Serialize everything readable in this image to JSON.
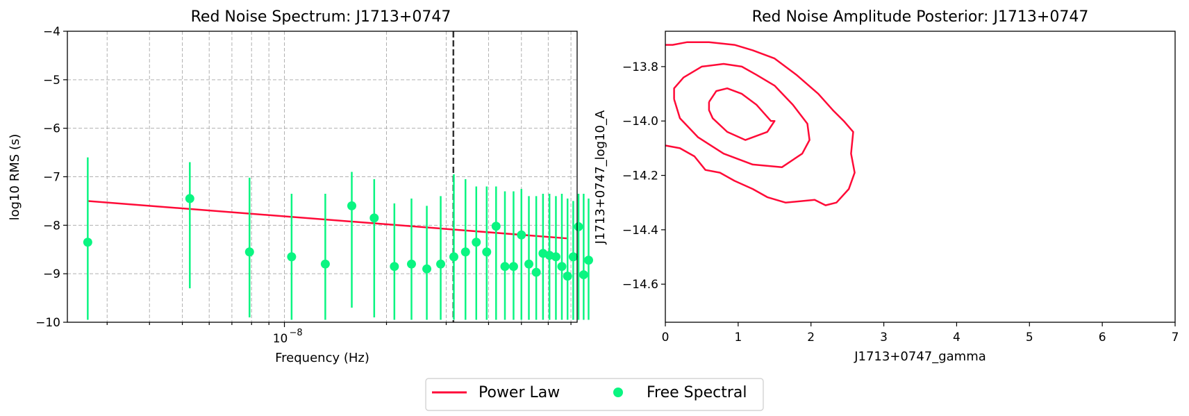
{
  "colors": {
    "power_law": "#ff0a37",
    "free_spectral": "#0af581",
    "contour": "#ff0a37",
    "grid": "#b0b0b0",
    "vline": "#333333"
  },
  "legend": {
    "items": [
      {
        "label": "Power Law",
        "marker": "line",
        "color": "#ff0a37"
      },
      {
        "label": "Free Spectral",
        "marker": "dot",
        "color": "#0af581"
      }
    ]
  },
  "chart_data": [
    {
      "type": "scatter",
      "title": "Red Noise Spectrum: J1713+0747",
      "xlabel": "Frequency (Hz)",
      "ylabel": "log10 RMS (s)",
      "xscale": "log",
      "xlim": [
        2.29e-09,
        7.3e-08
      ],
      "ylim": [
        -10,
        -4
      ],
      "yticks": [
        -10,
        -9,
        -8,
        -7,
        -6,
        -5,
        -4
      ],
      "ytick_labels": [
        "−10",
        "−9",
        "−8",
        "−7",
        "−6",
        "−5",
        "−4"
      ],
      "xtick_major_labels": [
        {
          "value": 1e-08,
          "label": "10",
          "exp": "−8"
        }
      ],
      "grid": true,
      "vline_x": 3.15e-08,
      "power_law": {
        "name": "Power Law",
        "x": [
          2.63e-09,
          6.8e-08
        ],
        "y": [
          -7.5,
          -8.27
        ]
      },
      "free_spectral": {
        "name": "Free Spectral",
        "x": [
          2.63e-09,
          5.26e-09,
          7.89e-09,
          1.05e-08,
          1.32e-08,
          1.58e-08,
          1.84e-08,
          2.11e-08,
          2.37e-08,
          2.63e-08,
          2.89e-08,
          3.16e-08,
          3.42e-08,
          3.68e-08,
          3.95e-08,
          4.21e-08,
          4.47e-08,
          4.74e-08,
          5e-08,
          5.26e-08,
          5.53e-08,
          5.79e-08,
          6.05e-08,
          6.32e-08,
          6.58e-08,
          6.84e-08,
          7.11e-08,
          7.37e-08,
          7.63e-08,
          7.89e-08
        ],
        "y": [
          -8.35,
          -7.45,
          -8.55,
          -8.65,
          -8.8,
          -7.6,
          -7.85,
          -8.85,
          -8.8,
          -8.9,
          -8.8,
          -8.65,
          -8.55,
          -8.35,
          -8.55,
          -8.02,
          -8.85,
          -8.85,
          -8.2,
          -8.8,
          -8.97,
          -8.58,
          -8.62,
          -8.65,
          -8.85,
          -9.05,
          -8.65,
          -8.03,
          -9.02,
          -8.72
        ],
        "err_low": [
          -9.95,
          -9.3,
          -9.9,
          -9.95,
          -9.95,
          -9.7,
          -9.9,
          -9.95,
          -9.95,
          -9.95,
          -9.95,
          -9.95,
          -9.95,
          -9.95,
          -9.95,
          -9.95,
          -9.95,
          -9.95,
          -9.95,
          -9.95,
          -9.95,
          -9.95,
          -9.95,
          -9.95,
          -9.95,
          -9.95,
          -9.95,
          -9.95,
          -9.95,
          -9.95
        ],
        "err_high": [
          -6.6,
          -6.7,
          -7.02,
          -7.35,
          -7.35,
          -6.9,
          -7.05,
          -7.55,
          -7.45,
          -7.6,
          -7.4,
          -6.95,
          -7.05,
          -7.2,
          -7.2,
          -7.2,
          -7.3,
          -7.3,
          -7.25,
          -7.4,
          -7.4,
          -7.35,
          -7.35,
          -7.4,
          -7.35,
          -7.45,
          -7.5,
          -7.35,
          -7.35,
          -7.45
        ]
      }
    },
    {
      "type": "contour",
      "title": "Red Noise Amplitude Posterior: J1713+0747",
      "xlabel": "J1713+0747_gamma",
      "ylabel": "J1713+0747_log10_A",
      "xlim": [
        0,
        7
      ],
      "ylim": [
        -14.74,
        -13.67
      ],
      "xticks": [
        0,
        1,
        2,
        3,
        4,
        5,
        6,
        7
      ],
      "xtick_labels": [
        "0",
        "1",
        "2",
        "3",
        "4",
        "5",
        "6",
        "7"
      ],
      "yticks": [
        -14.6,
        -14.4,
        -14.2,
        -14.0,
        -13.8
      ],
      "ytick_labels": [
        "−14.6",
        "−14.4",
        "−14.2",
        "−14.0",
        "−13.8"
      ],
      "grid": false,
      "contours": [
        {
          "level": "inner",
          "points": [
            [
              0.6,
              -13.93
            ],
            [
              0.7,
              -13.89
            ],
            [
              0.85,
              -13.88
            ],
            [
              1.05,
              -13.9
            ],
            [
              1.25,
              -13.94
            ],
            [
              1.45,
              -14.0
            ],
            [
              1.5,
              -14.0
            ],
            [
              1.4,
              -14.04
            ],
            [
              1.1,
              -14.07
            ],
            [
              0.85,
              -14.04
            ],
            [
              0.65,
              -13.99
            ],
            [
              0.6,
              -13.96
            ],
            [
              0.6,
              -13.93
            ]
          ]
        },
        {
          "level": "middle",
          "points": [
            [
              0.12,
              -13.92
            ],
            [
              0.12,
              -13.88
            ],
            [
              0.25,
              -13.84
            ],
            [
              0.5,
              -13.8
            ],
            [
              0.8,
              -13.79
            ],
            [
              1.05,
              -13.8
            ],
            [
              1.25,
              -13.83
            ],
            [
              1.5,
              -13.87
            ],
            [
              1.75,
              -13.94
            ],
            [
              1.95,
              -14.01
            ],
            [
              1.98,
              -14.07
            ],
            [
              1.88,
              -14.12
            ],
            [
              1.6,
              -14.17
            ],
            [
              1.2,
              -14.16
            ],
            [
              0.8,
              -14.12
            ],
            [
              0.45,
              -14.06
            ],
            [
              0.2,
              -13.99
            ],
            [
              0.12,
              -13.92
            ]
          ]
        },
        {
          "level": "outer",
          "points": [
            [
              0.0,
              -13.72
            ],
            [
              0.1,
              -13.72
            ],
            [
              0.3,
              -13.71
            ],
            [
              0.6,
              -13.71
            ],
            [
              0.95,
              -13.72
            ],
            [
              1.2,
              -13.74
            ],
            [
              1.5,
              -13.77
            ],
            [
              1.8,
              -13.83
            ],
            [
              2.1,
              -13.9
            ],
            [
              2.3,
              -13.96
            ],
            [
              2.45,
              -14.0
            ],
            [
              2.58,
              -14.04
            ],
            [
              2.55,
              -14.12
            ],
            [
              2.6,
              -14.19
            ],
            [
              2.52,
              -14.25
            ],
            [
              2.35,
              -14.3
            ],
            [
              2.2,
              -14.31
            ],
            [
              2.05,
              -14.29
            ],
            [
              1.65,
              -14.3
            ],
            [
              1.4,
              -14.28
            ],
            [
              1.2,
              -14.25
            ],
            [
              0.95,
              -14.22
            ],
            [
              0.75,
              -14.19
            ],
            [
              0.55,
              -14.18
            ],
            [
              0.4,
              -14.13
            ],
            [
              0.2,
              -14.1
            ],
            [
              0.0,
              -14.09
            ]
          ]
        }
      ]
    }
  ]
}
